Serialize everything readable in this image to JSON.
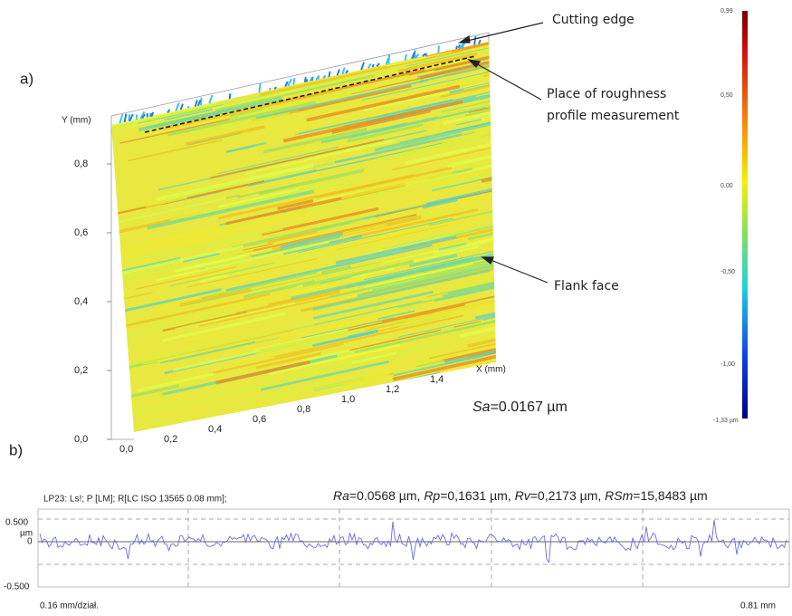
{
  "panels": {
    "a": "a)",
    "b": "b)"
  },
  "surface": {
    "annotations": {
      "cutting_edge": "Cutting edge",
      "measurement_place": [
        "Place of roughness",
        "profile measurement"
      ],
      "flank_face": "Flank face"
    },
    "y_axis": {
      "label": "Y (mm)",
      "ticks": [
        "0,8",
        "0,6",
        "0,4",
        "0,2",
        "0,0"
      ]
    },
    "x_axis": {
      "label": "X (mm)",
      "ticks": [
        "0,0",
        "0,2",
        "0,4",
        "0,6",
        "0,8",
        "1,0",
        "1,2",
        "1,4"
      ]
    },
    "sa": {
      "name": "Sa",
      "value": "=0.0167 µm"
    },
    "colorbar": [
      "0,99",
      "0,50",
      "0,00",
      "-0,50",
      "-1,00",
      "-1,33 µm"
    ]
  },
  "profile": {
    "header": "LP23: Ls!; P [LM]; R[LC ISO 13565 0.08 mm];",
    "params": [
      {
        "name": "Ra",
        "value": "=0.0568 µm, "
      },
      {
        "name": "Rp",
        "value": "=0,1631 µm, "
      },
      {
        "name": "Rv",
        "value": "=0,2173 µm, "
      },
      {
        "name": "RSm",
        "value": "=15,8483 µm"
      }
    ],
    "y_labels": [
      "0.500",
      "µm",
      "0",
      "-0.500"
    ],
    "scale": "0.16 mm/dział.",
    "length": "0.81 mm"
  }
}
